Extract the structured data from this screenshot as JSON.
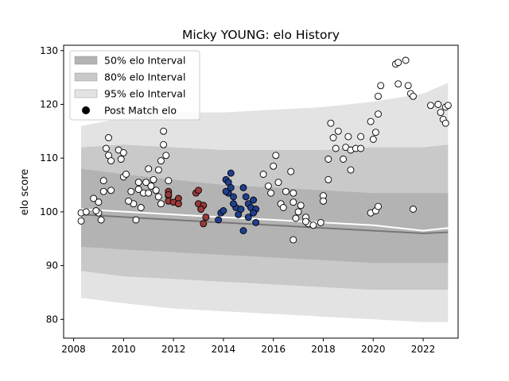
{
  "chart_data": {
    "type": "scatter",
    "title": "Micky YOUNG: elo History",
    "xlabel": "",
    "ylabel": "elo score",
    "xlim": [
      2007.6,
      2023.4
    ],
    "ylim": [
      76.5,
      131
    ],
    "xticks": [
      2008,
      2010,
      2012,
      2014,
      2016,
      2018,
      2020,
      2022
    ],
    "yticks": [
      80,
      90,
      100,
      110,
      120,
      130
    ],
    "grid": false,
    "legend_placement": "top-left",
    "legend": [
      {
        "label": "50% elo Interval",
        "kind": "band",
        "color": "#b3b3b3"
      },
      {
        "label": "80% elo Interval",
        "kind": "band",
        "color": "#c9c9c9"
      },
      {
        "label": "95% elo Interval",
        "kind": "band",
        "color": "#e3e3e3"
      },
      {
        "label": "Post Match elo",
        "kind": "marker",
        "color": "#000000"
      }
    ],
    "bands": [
      {
        "name": "95% elo Interval",
        "color": "#e3e3e3",
        "x": [
          2008.3,
          2010,
          2012,
          2014,
          2016,
          2018,
          2020,
          2022,
          2023.0
        ],
        "upper": [
          116.0,
          117.5,
          118.5,
          118.5,
          119.0,
          119.5,
          120.5,
          122.0,
          124.0
        ],
        "lower": [
          84.0,
          83.0,
          82.0,
          81.5,
          81.0,
          80.5,
          80.0,
          79.5,
          79.5
        ]
      },
      {
        "name": "80% elo Interval",
        "color": "#c9c9c9",
        "x": [
          2008.3,
          2010,
          2012,
          2014,
          2016,
          2018,
          2020,
          2022,
          2023.0
        ],
        "upper": [
          112.0,
          112.5,
          112.0,
          111.5,
          111.5,
          111.5,
          112.0,
          112.0,
          112.5
        ],
        "lower": [
          89.0,
          88.0,
          87.5,
          87.0,
          86.5,
          86.0,
          85.5,
          85.5,
          85.5
        ]
      },
      {
        "name": "50% elo Interval",
        "color": "#b3b3b3",
        "x": [
          2008.3,
          2010,
          2012,
          2014,
          2016,
          2018,
          2020,
          2022,
          2023.0
        ],
        "upper": [
          108.0,
          107.0,
          106.0,
          105.0,
          104.5,
          104.0,
          103.5,
          103.5,
          103.5
        ],
        "lower": [
          93.5,
          93.0,
          92.5,
          92.0,
          91.5,
          91.0,
          90.5,
          90.5,
          90.5
        ]
      }
    ],
    "mean_lines": [
      {
        "color": "#ffffff",
        "x": [
          2008.3,
          2012,
          2016,
          2020,
          2022,
          2023.0
        ],
        "y": [
          100.5,
          99.5,
          98.5,
          97.5,
          96.5,
          97.0
        ]
      },
      {
        "color": "#777777",
        "x": [
          2008.3,
          2012,
          2016,
          2020,
          2022,
          2023.0
        ],
        "y": [
          99.5,
          98.5,
          97.5,
          96.5,
          96.0,
          96.2
        ]
      }
    ],
    "series": [
      {
        "fill": "#ffffff",
        "points": [
          [
            2008.3,
            98.3
          ],
          [
            2008.3,
            99.8
          ],
          [
            2008.5,
            100.0
          ],
          [
            2008.8,
            102.5
          ],
          [
            2009.0,
            99.8
          ],
          [
            2009.0,
            101.8
          ],
          [
            2009.1,
            98.5
          ],
          [
            2009.2,
            103.8
          ],
          [
            2009.2,
            105.8
          ],
          [
            2009.3,
            111.8
          ],
          [
            2009.4,
            113.8
          ],
          [
            2009.4,
            110.5
          ],
          [
            2009.5,
            109.5
          ],
          [
            2009.8,
            111.5
          ],
          [
            2009.9,
            109.8
          ],
          [
            2010.0,
            106.5
          ],
          [
            2010.0,
            111.0
          ],
          [
            2010.1,
            107.0
          ],
          [
            2010.3,
            103.8
          ],
          [
            2010.4,
            101.5
          ],
          [
            2010.5,
            98.5
          ],
          [
            2010.6,
            105.5
          ],
          [
            2010.7,
            100.8
          ],
          [
            2010.8,
            103.5
          ],
          [
            2010.9,
            105.5
          ],
          [
            2011.0,
            108.0
          ],
          [
            2011.2,
            106.0
          ],
          [
            2011.3,
            104.0
          ],
          [
            2011.4,
            102.8
          ],
          [
            2011.5,
            109.5
          ],
          [
            2011.6,
            112.5
          ],
          [
            2011.6,
            115.0
          ],
          [
            2011.7,
            110.5
          ],
          [
            2011.8,
            105.8
          ],
          [
            2008.9,
            100.2
          ],
          [
            2009.5,
            104.0
          ],
          [
            2010.2,
            102.0
          ],
          [
            2010.6,
            104.2
          ],
          [
            2011.0,
            103.5
          ],
          [
            2011.1,
            104.8
          ],
          [
            2011.4,
            107.8
          ],
          [
            2011.5,
            101.5
          ],
          [
            2011.8,
            103.0
          ],
          [
            2015.6,
            107.0
          ],
          [
            2015.8,
            104.8
          ],
          [
            2015.9,
            103.5
          ],
          [
            2016.0,
            108.5
          ],
          [
            2016.1,
            110.5
          ],
          [
            2016.2,
            105.5
          ],
          [
            2016.3,
            101.5
          ],
          [
            2016.4,
            100.8
          ],
          [
            2016.5,
            103.8
          ],
          [
            2016.7,
            107.5
          ],
          [
            2016.8,
            103.5
          ],
          [
            2016.8,
            101.8
          ],
          [
            2016.9,
            98.8
          ],
          [
            2017.0,
            100.0
          ],
          [
            2017.1,
            101.2
          ],
          [
            2017.3,
            99.0
          ],
          [
            2017.4,
            97.8
          ],
          [
            2017.6,
            97.5
          ],
          [
            2017.9,
            98.0
          ],
          [
            2018.0,
            103.0
          ],
          [
            2018.0,
            102.0
          ],
          [
            2018.2,
            106.0
          ],
          [
            2018.2,
            109.8
          ],
          [
            2018.3,
            116.5
          ],
          [
            2018.4,
            113.8
          ],
          [
            2018.5,
            111.8
          ],
          [
            2018.6,
            115.0
          ],
          [
            2018.8,
            109.8
          ],
          [
            2018.9,
            112.0
          ],
          [
            2019.0,
            114.0
          ],
          [
            2019.1,
            111.5
          ],
          [
            2019.1,
            107.8
          ],
          [
            2019.3,
            111.8
          ],
          [
            2019.5,
            114.0
          ],
          [
            2019.5,
            111.8
          ],
          [
            2019.9,
            116.8
          ],
          [
            2020.0,
            113.5
          ],
          [
            2020.1,
            114.8
          ],
          [
            2020.2,
            118.2
          ],
          [
            2020.2,
            121.5
          ],
          [
            2020.3,
            123.5
          ],
          [
            2019.9,
            99.8
          ],
          [
            2020.1,
            100.2
          ],
          [
            2020.2,
            101.0
          ],
          [
            2020.9,
            127.5
          ],
          [
            2021.0,
            127.8
          ],
          [
            2021.0,
            123.8
          ],
          [
            2021.3,
            128.2
          ],
          [
            2021.4,
            123.5
          ],
          [
            2021.5,
            122.0
          ],
          [
            2021.6,
            121.5
          ],
          [
            2021.6,
            100.5
          ],
          [
            2022.3,
            119.8
          ],
          [
            2022.6,
            120.0
          ],
          [
            2022.7,
            118.5
          ],
          [
            2022.8,
            117.2
          ],
          [
            2022.9,
            119.5
          ],
          [
            2022.9,
            116.5
          ],
          [
            2023.0,
            119.8
          ],
          [
            2016.8,
            94.8
          ],
          [
            2017.3,
            98.2
          ]
        ]
      },
      {
        "fill": "#9a3a3a",
        "points": [
          [
            2011.8,
            103.8
          ],
          [
            2011.8,
            102.0
          ],
          [
            2012.0,
            101.8
          ],
          [
            2012.2,
            102.5
          ],
          [
            2012.9,
            103.5
          ],
          [
            2013.0,
            104.0
          ],
          [
            2013.0,
            101.5
          ],
          [
            2013.2,
            101.2
          ],
          [
            2013.2,
            97.8
          ],
          [
            2013.3,
            99.0
          ],
          [
            2011.8,
            103.2
          ],
          [
            2012.2,
            101.5
          ],
          [
            2013.1,
            100.5
          ]
        ]
      },
      {
        "fill": "#1f3f8f",
        "points": [
          [
            2013.8,
            98.5
          ],
          [
            2013.9,
            99.8
          ],
          [
            2014.0,
            100.2
          ],
          [
            2014.1,
            106.0
          ],
          [
            2014.2,
            105.5
          ],
          [
            2014.3,
            107.2
          ],
          [
            2014.2,
            103.5
          ],
          [
            2014.3,
            104.5
          ],
          [
            2014.4,
            102.8
          ],
          [
            2014.5,
            100.8
          ],
          [
            2014.6,
            99.5
          ],
          [
            2014.7,
            100.5
          ],
          [
            2014.8,
            104.5
          ],
          [
            2014.9,
            102.8
          ],
          [
            2015.0,
            101.5
          ],
          [
            2015.0,
            99.0
          ],
          [
            2015.1,
            100.8
          ],
          [
            2015.2,
            102.2
          ],
          [
            2015.3,
            98.0
          ],
          [
            2015.3,
            100.5
          ],
          [
            2014.8,
            96.5
          ],
          [
            2014.1,
            103.8
          ],
          [
            2014.4,
            101.5
          ],
          [
            2015.2,
            99.8
          ]
        ]
      }
    ]
  }
}
